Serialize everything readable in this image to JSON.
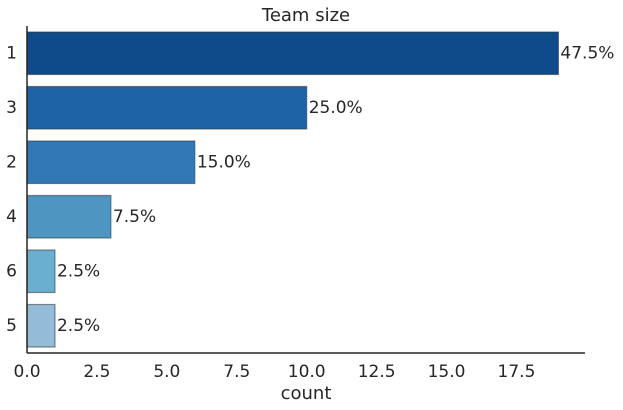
{
  "chart_data": {
    "type": "bar",
    "orientation": "horizontal",
    "title": "Team size",
    "xlabel": "count",
    "ylabel": "",
    "categories": [
      "1",
      "3",
      "2",
      "4",
      "6",
      "5"
    ],
    "values": [
      19,
      10,
      6,
      3,
      1,
      1
    ],
    "data_labels": [
      "47.5%",
      "25.0%",
      "15.0%",
      "7.5%",
      "2.5%",
      "2.5%"
    ],
    "xlim": [
      0,
      19.95
    ],
    "xticks": [
      "0.0",
      "2.5",
      "5.0",
      "7.5",
      "10.0",
      "12.5",
      "15.0",
      "17.5"
    ],
    "grid": false,
    "legend": "none",
    "colors": [
      "#0f4b8a",
      "#1d63a5",
      "#3179b6",
      "#4e95c2",
      "#6aaed0",
      "#93bcd8"
    ]
  }
}
